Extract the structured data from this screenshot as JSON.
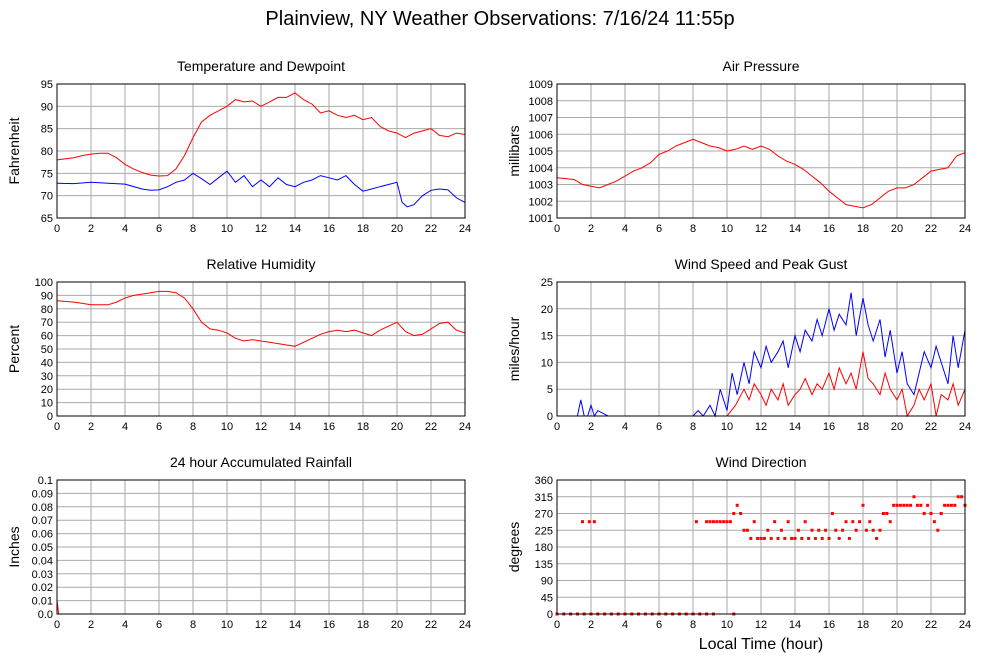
{
  "page": {
    "title": "Plainview, NY Weather Observations: 7/16/24 11:55p",
    "xlabel": "Local Time (hour)"
  },
  "colors": {
    "red": "#ff0000",
    "blue": "#0000ff",
    "grid": "#aaaaaa",
    "frame": "#000000"
  },
  "chart_data": [
    {
      "id": "temperature",
      "type": "line",
      "title": "Temperature and Dewpoint",
      "xlabel": "",
      "ylabel": "Fahrenheit",
      "xlim": [
        0,
        24
      ],
      "ylim": [
        65,
        95
      ],
      "xticks": [
        0,
        2,
        4,
        6,
        8,
        10,
        12,
        14,
        16,
        18,
        20,
        22,
        24
      ],
      "yticks": [
        65,
        70,
        75,
        80,
        85,
        90,
        95
      ],
      "grid": true,
      "series": [
        {
          "color": "red",
          "x": [
            0,
            1,
            1.5,
            2,
            2.5,
            3,
            3.5,
            4,
            4.5,
            5,
            5.5,
            6,
            6.5,
            7,
            7.5,
            8,
            8.5,
            9,
            9.5,
            10,
            10.5,
            11,
            11.5,
            12,
            12.5,
            13,
            13.5,
            14,
            14.5,
            15,
            15.5,
            16,
            16.5,
            17,
            17.5,
            18,
            18.5,
            19,
            19.5,
            20,
            20.5,
            21,
            21.5,
            22,
            22.5,
            23,
            23.5,
            24
          ],
          "y": [
            78,
            78.5,
            79,
            79.3,
            79.5,
            79.5,
            78.5,
            77,
            76,
            75.2,
            74.6,
            74.4,
            74.5,
            76,
            79,
            83,
            86.5,
            88,
            89,
            90,
            91.5,
            91,
            91.2,
            90,
            91,
            92,
            92,
            93,
            91.5,
            90.5,
            88.5,
            89,
            88,
            87.5,
            88,
            87,
            87.5,
            85.5,
            84.5,
            84,
            83,
            84,
            84.5,
            85,
            83.5,
            83.2,
            84,
            83.7
          ]
        },
        {
          "color": "blue",
          "x": [
            0,
            1,
            2,
            3,
            4,
            5,
            5.5,
            6,
            6.5,
            7,
            7.5,
            8,
            8.5,
            9,
            9.5,
            10,
            10.5,
            11,
            11.5,
            12,
            12.5,
            13,
            13.5,
            14,
            14.5,
            15,
            15.5,
            16,
            16.5,
            17,
            17.5,
            18,
            18.5,
            19,
            19.5,
            20,
            20.3,
            20.6,
            21,
            21.5,
            22,
            22.5,
            23,
            23.5,
            24
          ],
          "y": [
            72.8,
            72.7,
            73,
            72.8,
            72.6,
            71.5,
            71.2,
            71.3,
            72,
            73,
            73.5,
            75,
            73.8,
            72.5,
            74,
            75.5,
            73,
            74.5,
            72,
            73.5,
            72,
            74,
            72.5,
            72,
            73,
            73.5,
            74.5,
            74,
            73.5,
            74.5,
            72.5,
            71,
            71.5,
            72,
            72.5,
            73,
            68.5,
            67.5,
            68,
            70,
            71.2,
            71.5,
            71.3,
            69.5,
            68.5
          ]
        }
      ]
    },
    {
      "id": "pressure",
      "type": "line",
      "title": "Air Pressure",
      "xlabel": "",
      "ylabel": "millibars",
      "xlim": [
        0,
        24
      ],
      "ylim": [
        1001,
        1009
      ],
      "xticks": [
        0,
        2,
        4,
        6,
        8,
        10,
        12,
        14,
        16,
        18,
        20,
        22,
        24
      ],
      "yticks": [
        1001,
        1002,
        1003,
        1004,
        1005,
        1006,
        1007,
        1008,
        1009
      ],
      "grid": true,
      "series": [
        {
          "color": "red",
          "x": [
            0,
            1,
            1.5,
            2,
            2.5,
            3,
            3.5,
            4,
            4.5,
            5,
            5.5,
            6,
            6.5,
            7,
            7.5,
            8,
            8.5,
            9,
            9.5,
            10,
            10.5,
            11,
            11.5,
            12,
            12.5,
            13,
            13.5,
            14,
            14.5,
            15,
            15.5,
            16,
            16.5,
            17,
            17.5,
            18,
            18.5,
            19,
            19.5,
            20,
            20.5,
            21,
            21.5,
            22,
            22.5,
            23,
            23.5,
            24
          ],
          "y": [
            1003.4,
            1003.3,
            1003.0,
            1002.9,
            1002.8,
            1003.0,
            1003.2,
            1003.5,
            1003.8,
            1004.0,
            1004.3,
            1004.8,
            1005.0,
            1005.3,
            1005.5,
            1005.7,
            1005.5,
            1005.3,
            1005.2,
            1005.0,
            1005.1,
            1005.3,
            1005.1,
            1005.3,
            1005.1,
            1004.7,
            1004.4,
            1004.2,
            1003.9,
            1003.5,
            1003.1,
            1002.6,
            1002.2,
            1001.8,
            1001.7,
            1001.6,
            1001.8,
            1002.2,
            1002.6,
            1002.8,
            1002.8,
            1003.0,
            1003.4,
            1003.8,
            1003.9,
            1004.0,
            1004.7,
            1004.9
          ]
        }
      ]
    },
    {
      "id": "humidity",
      "type": "line",
      "title": "Relative Humidity",
      "xlabel": "",
      "ylabel": "Percent",
      "xlim": [
        0,
        24
      ],
      "ylim": [
        0,
        100
      ],
      "xticks": [
        0,
        2,
        4,
        6,
        8,
        10,
        12,
        14,
        16,
        18,
        20,
        22,
        24
      ],
      "yticks": [
        0,
        10,
        20,
        30,
        40,
        50,
        60,
        70,
        80,
        90,
        100
      ],
      "grid": true,
      "series": [
        {
          "color": "red",
          "x": [
            0,
            1,
            1.5,
            2,
            2.5,
            3,
            3.5,
            4,
            4.5,
            5,
            5.5,
            6,
            6.5,
            7,
            7.5,
            8,
            8.5,
            9,
            9.5,
            10,
            10.5,
            11,
            11.5,
            12,
            12.5,
            13,
            13.5,
            14,
            14.5,
            15,
            15.5,
            16,
            16.5,
            17,
            17.5,
            18,
            18.5,
            19,
            19.5,
            20,
            20.5,
            21,
            21.5,
            22,
            22.5,
            23,
            23.5,
            24
          ],
          "y": [
            86,
            85,
            84,
            83,
            83,
            83,
            85,
            88,
            90,
            91,
            92,
            93,
            93,
            92,
            88,
            80,
            70,
            65,
            64,
            62,
            58,
            56,
            57,
            56,
            55,
            54,
            53,
            52,
            55,
            58,
            61,
            63,
            64,
            63,
            64,
            62,
            60,
            64,
            67,
            70,
            63,
            60,
            61,
            65,
            69,
            70,
            64,
            62
          ]
        }
      ]
    },
    {
      "id": "wind",
      "type": "line",
      "title": "Wind Speed and Peak Gust",
      "xlabel": "",
      "ylabel": "miles/hour",
      "xlim": [
        0,
        24
      ],
      "ylim": [
        0,
        25
      ],
      "xticks": [
        0,
        2,
        4,
        6,
        8,
        10,
        12,
        14,
        16,
        18,
        20,
        22,
        24
      ],
      "yticks": [
        0,
        5,
        10,
        15,
        20,
        25
      ],
      "grid": true,
      "series": [
        {
          "color": "blue",
          "x": [
            0,
            1.2,
            1.4,
            1.6,
            1.8,
            2.0,
            2.2,
            2.4,
            3,
            8,
            8.3,
            8.6,
            9.0,
            9.3,
            9.6,
            10.0,
            10.3,
            10.6,
            11.0,
            11.3,
            11.6,
            12.0,
            12.3,
            12.6,
            13.0,
            13.3,
            13.6,
            14.0,
            14.3,
            14.6,
            15.0,
            15.3,
            15.6,
            16.0,
            16.3,
            16.6,
            17.0,
            17.3,
            17.6,
            18.0,
            18.3,
            18.6,
            19.0,
            19.3,
            19.6,
            20.0,
            20.3,
            20.6,
            21.0,
            21.3,
            21.6,
            22.0,
            22.3,
            22.6,
            23.0,
            23.3,
            23.6,
            24.0
          ],
          "y": [
            0,
            0,
            3,
            0,
            0,
            2,
            0,
            1,
            0,
            0,
            1,
            0,
            2,
            0,
            5,
            1,
            8,
            4,
            10,
            6,
            12,
            9,
            13,
            10,
            12,
            14,
            9,
            15,
            12,
            16,
            14,
            18,
            15,
            20,
            16,
            19,
            17,
            23,
            15,
            22,
            17,
            14,
            18,
            11,
            16,
            8,
            12,
            6,
            4,
            8,
            12,
            9,
            13,
            10,
            6,
            15,
            9,
            16
          ]
        },
        {
          "color": "red",
          "x": [
            0,
            10,
            10.5,
            11.0,
            11.3,
            11.6,
            12.0,
            12.3,
            12.6,
            13.0,
            13.3,
            13.6,
            14.0,
            14.3,
            14.6,
            15.0,
            15.3,
            15.6,
            16.0,
            16.3,
            16.6,
            17.0,
            17.3,
            17.6,
            18.0,
            18.3,
            18.6,
            19.0,
            19.3,
            19.6,
            20.0,
            20.3,
            20.6,
            21.0,
            21.3,
            21.6,
            22.0,
            22.3,
            22.6,
            23.0,
            23.3,
            23.6,
            24.0
          ],
          "y": [
            0,
            0,
            2,
            5,
            3,
            6,
            4,
            2,
            5,
            3,
            6,
            2,
            4,
            5,
            7,
            4,
            6,
            5,
            8,
            5,
            9,
            6,
            8,
            5,
            12,
            7,
            6,
            4,
            8,
            5,
            3,
            5,
            0,
            2,
            5,
            3,
            6,
            0,
            4,
            3,
            6,
            2,
            5
          ]
        }
      ]
    },
    {
      "id": "rainfall",
      "type": "line",
      "title": "24 hour Accumulated Rainfall",
      "xlabel": "",
      "ylabel": "Inches",
      "xlim": [
        0,
        24
      ],
      "ylim": [
        0,
        0.1
      ],
      "xticks": [
        0,
        2,
        4,
        6,
        8,
        10,
        12,
        14,
        16,
        18,
        20,
        22,
        24
      ],
      "yticks": [
        0,
        0.01,
        0.02,
        0.03,
        0.04,
        0.05,
        0.06,
        0.07,
        0.08,
        0.09,
        0.1
      ],
      "ytick_labels": [
        "0.0",
        "0.01",
        "0.02",
        "0.03",
        "0.04",
        "0.05",
        "0.06",
        "0.07",
        "0.08",
        "0.09",
        "0.1"
      ],
      "grid": true,
      "series": [
        {
          "color": "red",
          "x": [
            0,
            0.1,
            24
          ],
          "y": [
            0.01,
            0,
            0
          ]
        }
      ]
    },
    {
      "id": "direction",
      "type": "scatter",
      "title": "Wind Direction",
      "xlabel": "Local Time (hour)",
      "ylabel": "degrees",
      "xlim": [
        0,
        24
      ],
      "ylim": [
        0,
        360
      ],
      "xticks": [
        0,
        2,
        4,
        6,
        8,
        10,
        12,
        14,
        16,
        18,
        20,
        22,
        24
      ],
      "yticks": [
        0,
        45,
        90,
        135,
        180,
        225,
        270,
        315,
        360
      ],
      "grid": true,
      "series": [
        {
          "color": "red",
          "x": [
            1.5,
            1.9,
            2.2,
            8.2,
            8.8,
            9.0,
            9.2,
            9.4,
            9.6,
            9.8,
            10.0,
            10.2,
            10.4,
            10.6,
            10.8,
            11.0,
            11.2,
            11.4,
            11.6,
            11.8,
            12.0,
            12.2,
            12.4,
            12.6,
            12.8,
            13.0,
            13.2,
            13.4,
            13.6,
            13.8,
            14.0,
            14.2,
            14.4,
            14.6,
            14.8,
            15.0,
            15.2,
            15.4,
            15.6,
            15.8,
            16.0,
            16.2,
            16.4,
            16.6,
            16.8,
            17.0,
            17.2,
            17.4,
            17.6,
            17.8,
            18.0,
            18.2,
            18.4,
            18.6,
            18.8,
            19.0,
            19.2,
            19.4,
            19.6,
            19.8,
            20.0,
            20.2,
            20.4,
            20.6,
            20.8,
            21.0,
            21.2,
            21.4,
            21.6,
            21.8,
            22.0,
            22.2,
            22.4,
            22.6,
            22.8,
            23.0,
            23.2,
            23.4,
            23.6,
            23.8,
            24.0
          ],
          "y": [
            248,
            248,
            248,
            248,
            248,
            248,
            248,
            248,
            248,
            248,
            248,
            248,
            270,
            292,
            270,
            225,
            225,
            203,
            248,
            203,
            203,
            203,
            225,
            203,
            248,
            203,
            225,
            203,
            248,
            203,
            203,
            225,
            203,
            248,
            203,
            225,
            203,
            225,
            203,
            225,
            203,
            270,
            225,
            203,
            225,
            248,
            203,
            248,
            225,
            248,
            292,
            225,
            248,
            225,
            203,
            225,
            270,
            270,
            248,
            292,
            292,
            292,
            292,
            292,
            292,
            315,
            292,
            292,
            270,
            292,
            270,
            248,
            225,
            270,
            292,
            292,
            292,
            292,
            315,
            315,
            292
          ]
        },
        {
          "color": "red",
          "x": [
            0,
            0.4,
            0.8,
            1.2,
            1.6,
            2.0,
            2.4,
            2.8,
            3.2,
            3.6,
            4.0,
            4.4,
            4.8,
            5.2,
            5.6,
            6.0,
            6.4,
            6.8,
            7.2,
            7.6,
            8.0,
            8.4,
            8.8,
            9.2,
            10.4
          ],
          "y": [
            0,
            0,
            0,
            0,
            0,
            0,
            0,
            0,
            0,
            0,
            0,
            0,
            0,
            0,
            0,
            0,
            0,
            0,
            0,
            0,
            0,
            0,
            0,
            0,
            0
          ]
        }
      ]
    }
  ]
}
